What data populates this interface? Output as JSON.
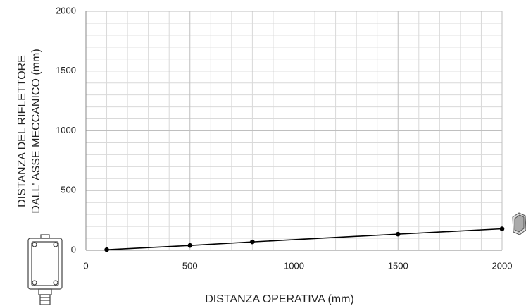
{
  "chart_data": {
    "type": "line",
    "xlabel": "DISTANZA OPERATIVA (mm)",
    "ylabel": [
      "DISTANZA  DEL  RIFLETTORE",
      "DALL' ASSE MECCANICO  (mm)"
    ],
    "x": [
      100,
      500,
      800,
      1500,
      2000
    ],
    "series": [
      {
        "color": "#000000",
        "values": [
          5,
          40,
          70,
          135,
          180
        ]
      }
    ],
    "xlim": [
      0,
      2000
    ],
    "xticks": [
      0,
      500,
      1000,
      1500,
      2000
    ],
    "ylim": [
      0,
      2000
    ],
    "yticks": [
      0,
      500,
      1000,
      1500,
      2000
    ],
    "grid": true
  }
}
